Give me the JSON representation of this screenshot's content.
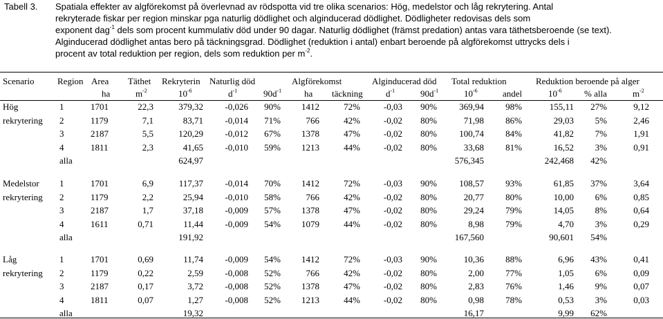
{
  "caption": {
    "label": "Tabell 3.",
    "line1": "Spatiala effekter av algförekomst på överlevnad av rödspotta vid tre olika scenarios: Hög, medelstor och låg rekrytering. Antal",
    "line2": "rekryterade fiskar per region minskar pga naturlig dödlighet och alginducerad dödlighet. Dödligheter redovisas dels som",
    "line3a": "exponent dag",
    "line3sup": "-1",
    "line3b": " dels som procent kummulativ död under 90 dagar. Naturlig dödlighet (främst predation) antas vara täthetsberoende (se text).",
    "line4": "Alginducerad dödlighet antas bero på täckningsgrad. Dödlighet (reduktion i antal) enbart beroende på algförekomst uttrycks dels i",
    "line5a": "procent av total reduktion per region, dels som reduktion per m",
    "line5sup": "-2",
    "line5b": "."
  },
  "header": {
    "scenario": "Scenario",
    "region": "Region",
    "area": "Area",
    "area_unit": "ha",
    "tathet": "Täthet",
    "tathet_unit": "m",
    "tathet_sup": "-2",
    "rekr": "Rekryterin",
    "rekr_unit": "10",
    "rekr_sup": "-6",
    "natdod": "Naturlig död",
    "natdod_unit_a": "d",
    "natdod_unit_a_sup": "-1",
    "natdod_unit_b": "90d",
    "natdod_unit_b_sup": "-1",
    "algf": "Algförekomst",
    "algf_unit_a": "ha",
    "algf_unit_b": "täckning",
    "algind": "Alginducerad död",
    "algind_unit_a": "d",
    "algind_unit_a_sup": "-1",
    "algind_unit_b": "90d",
    "algind_unit_b_sup": "-1",
    "totred": "Total reduktion",
    "totred_unit_a": "10",
    "totred_unit_a_sup": "-6",
    "totred_unit_b": "andel",
    "redalg": "Reduktion beroende på alger",
    "redalg_unit_a": "10",
    "redalg_unit_a_sup": "-6",
    "redalg_unit_b": "% alla",
    "redalg_unit_c": "m",
    "redalg_unit_c_sup": "-2"
  },
  "groups": [
    {
      "name1": "Hög",
      "name2": "rekrytering",
      "rows": [
        [
          "1",
          "1701",
          "22,3",
          "379,32",
          "-0,026",
          "90%",
          "1412",
          "72%",
          "-0,03",
          "90%",
          "369,94",
          "98%",
          "155,11",
          "27%",
          "9,12"
        ],
        [
          "2",
          "1179",
          "7,1",
          "83,71",
          "-0,014",
          "71%",
          "766",
          "42%",
          "-0,02",
          "80%",
          "71,98",
          "86%",
          "29,03",
          "5%",
          "2,46"
        ],
        [
          "3",
          "2187",
          "5,5",
          "120,29",
          "-0,012",
          "67%",
          "1378",
          "47%",
          "-0,02",
          "80%",
          "100,74",
          "84%",
          "41,82",
          "7%",
          "1,91"
        ],
        [
          "4",
          "1811",
          "2,3",
          "41,65",
          "-0,010",
          "59%",
          "1213",
          "44%",
          "-0,02",
          "80%",
          "33,68",
          "81%",
          "16,52",
          "3%",
          "0,91"
        ]
      ],
      "alla": {
        "label": "alla",
        "rekr": "624,97",
        "totred": "576,345",
        "red": "242,468",
        "pct": "42%"
      }
    },
    {
      "name1": "Medelstor",
      "name2": "rekrytering",
      "rows": [
        [
          "1",
          "1701",
          "6,9",
          "117,37",
          "-0,014",
          "70%",
          "1412",
          "72%",
          "-0,03",
          "90%",
          "108,57",
          "93%",
          "61,85",
          "37%",
          "3,64"
        ],
        [
          "2",
          "1179",
          "2,2",
          "25,94",
          "-0,010",
          "58%",
          "766",
          "42%",
          "-0,02",
          "80%",
          "20,77",
          "80%",
          "10,00",
          "6%",
          "0,85"
        ],
        [
          "3",
          "2187",
          "1,7",
          "37,18",
          "-0,009",
          "57%",
          "1378",
          "47%",
          "-0,02",
          "80%",
          "29,24",
          "79%",
          "14,05",
          "8%",
          "0,64"
        ],
        [
          "4",
          "1611",
          "0,71",
          "11,44",
          "-0,009",
          "54%",
          "1079",
          "44%",
          "-0,02",
          "80%",
          "8,98",
          "79%",
          "4,70",
          "3%",
          "0,29"
        ]
      ],
      "alla": {
        "label": "alla",
        "rekr": "191,92",
        "totred": "167,560",
        "red": "90,601",
        "pct": "54%"
      }
    },
    {
      "name1": "Låg",
      "name2": "rekrytering",
      "rows": [
        [
          "1",
          "1701",
          "0,69",
          "11,74",
          "-0,009",
          "54%",
          "1412",
          "72%",
          "-0,03",
          "90%",
          "10,36",
          "88%",
          "6,96",
          "43%",
          "0,41"
        ],
        [
          "2",
          "1179",
          "0,22",
          "2,59",
          "-0,008",
          "52%",
          "766",
          "42%",
          "-0,02",
          "80%",
          "2,00",
          "77%",
          "1,05",
          "6%",
          "0,09"
        ],
        [
          "3",
          "2187",
          "0,17",
          "3,72",
          "-0,008",
          "52%",
          "1378",
          "47%",
          "-0,02",
          "80%",
          "2,83",
          "76%",
          "1,46",
          "9%",
          "0,07"
        ],
        [
          "4",
          "1811",
          "0,07",
          "1,27",
          "-0,008",
          "52%",
          "1213",
          "44%",
          "-0,02",
          "80%",
          "0,98",
          "78%",
          "0,53",
          "3%",
          "0,03"
        ]
      ],
      "alla": {
        "label": "alla",
        "rekr": "19,32",
        "totred": "16,17",
        "red": "9,99",
        "pct": "62%"
      }
    }
  ]
}
